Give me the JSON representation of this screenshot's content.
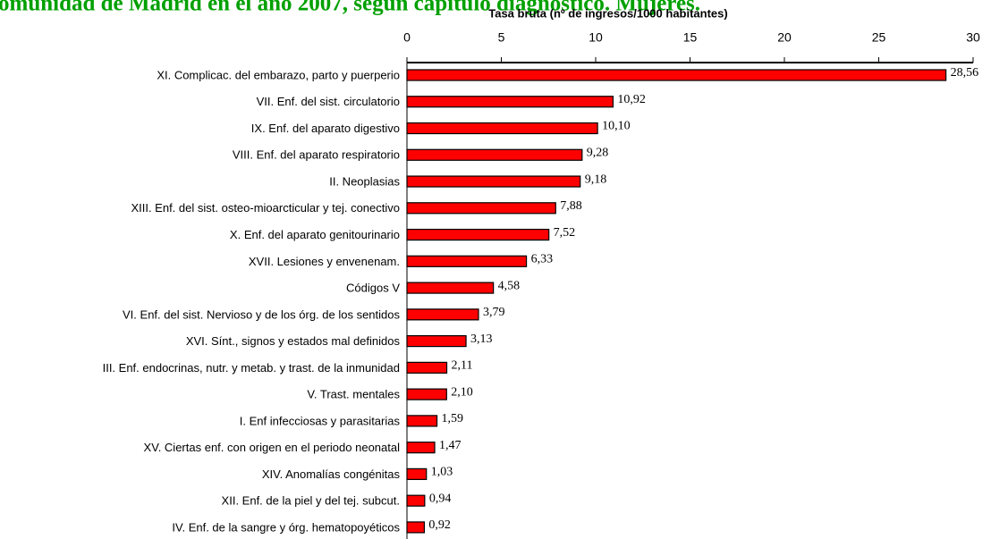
{
  "chart_data": {
    "type": "bar",
    "orientation": "horizontal",
    "title": "omunidad de Madrid en el año 2007, según capítulo diagnóstico. Mujeres.",
    "x_label": "Tasa bruta (nº de ingresos/1000 habitantes)",
    "categories": [
      "XI. Complicac. del embarazo, parto y puerperio",
      "VII. Enf. del sist. circulatorio",
      "IX. Enf. del aparato digestivo",
      "VIII. Enf. del aparato respiratorio",
      "II. Neoplasias",
      "XIII. Enf. del sist. osteo-mioarcticular y tej. conectivo",
      "X. Enf. del aparato genitourinario",
      "XVII. Lesiones y envenenam.",
      "Códigos V",
      "VI. Enf. del sist. Nervioso y de los órg. de los sentidos",
      "XVI. Sínt., signos y estados mal definidos",
      "III. Enf. endocrinas, nutr. y metab. y trast. de la inmunidad",
      "V. Trast. mentales",
      "I. Enf infecciosas y parasitarias",
      "XV. Ciertas enf. con origen en el periodo neonatal",
      "XIV. Anomalías congénitas",
      "XII. Enf. de la piel y del tej. subcut.",
      "IV. Enf. de la sangre y órg. hematopoyéticos"
    ],
    "values": [
      28.56,
      10.92,
      10.1,
      9.28,
      9.18,
      7.88,
      7.52,
      6.33,
      4.58,
      3.79,
      3.13,
      2.11,
      2.1,
      1.59,
      1.47,
      1.03,
      0.94,
      0.92
    ],
    "value_labels": [
      "28,56",
      "10,92",
      "10,10",
      "9,28",
      "9,18",
      "7,88",
      "7,52",
      "6,33",
      "4,58",
      "3,79",
      "3,13",
      "2,11",
      "2,10",
      "1,59",
      "1,47",
      "1,03",
      "0,94",
      "0,92"
    ],
    "color": "#ff0000",
    "xlim": [
      0,
      30
    ],
    "xticks": [
      0,
      5,
      10,
      15,
      20,
      25,
      30
    ]
  }
}
